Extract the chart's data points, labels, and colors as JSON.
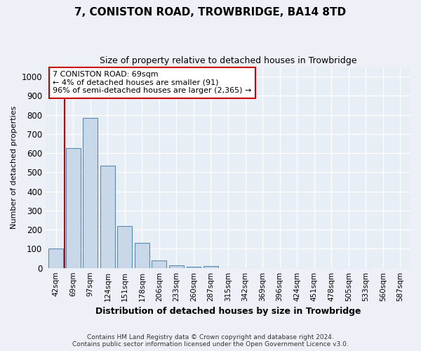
{
  "title": "7, CONISTON ROAD, TROWBRIDGE, BA14 8TD",
  "subtitle": "Size of property relative to detached houses in Trowbridge",
  "xlabel": "Distribution of detached houses by size in Trowbridge",
  "ylabel": "Number of detached properties",
  "categories": [
    "42sqm",
    "69sqm",
    "97sqm",
    "124sqm",
    "151sqm",
    "178sqm",
    "206sqm",
    "233sqm",
    "260sqm",
    "287sqm",
    "315sqm",
    "342sqm",
    "369sqm",
    "396sqm",
    "424sqm",
    "451sqm",
    "478sqm",
    "505sqm",
    "533sqm",
    "560sqm",
    "587sqm"
  ],
  "values": [
    100,
    625,
    785,
    535,
    220,
    130,
    40,
    15,
    8,
    10,
    0,
    0,
    0,
    0,
    0,
    0,
    0,
    0,
    0,
    0,
    0
  ],
  "highlight_index": 1,
  "bar_color": "#c8d8e8",
  "bar_edge_color": "#5a8ab0",
  "highlight_line_color": "#cc0000",
  "ylim": [
    0,
    1050
  ],
  "yticks": [
    0,
    100,
    200,
    300,
    400,
    500,
    600,
    700,
    800,
    900,
    1000
  ],
  "annotation_text": "7 CONISTON ROAD: 69sqm\n← 4% of detached houses are smaller (91)\n96% of semi-detached houses are larger (2,365) →",
  "annotation_box_color": "#ffffff",
  "annotation_box_edge": "#cc0000",
  "footer_line1": "Contains HM Land Registry data © Crown copyright and database right 2024.",
  "footer_line2": "Contains public sector information licensed under the Open Government Licence v3.0.",
  "bg_color": "#edf1f7",
  "plot_bg_color": "#e8eef5",
  "grid_color": "#ffffff"
}
